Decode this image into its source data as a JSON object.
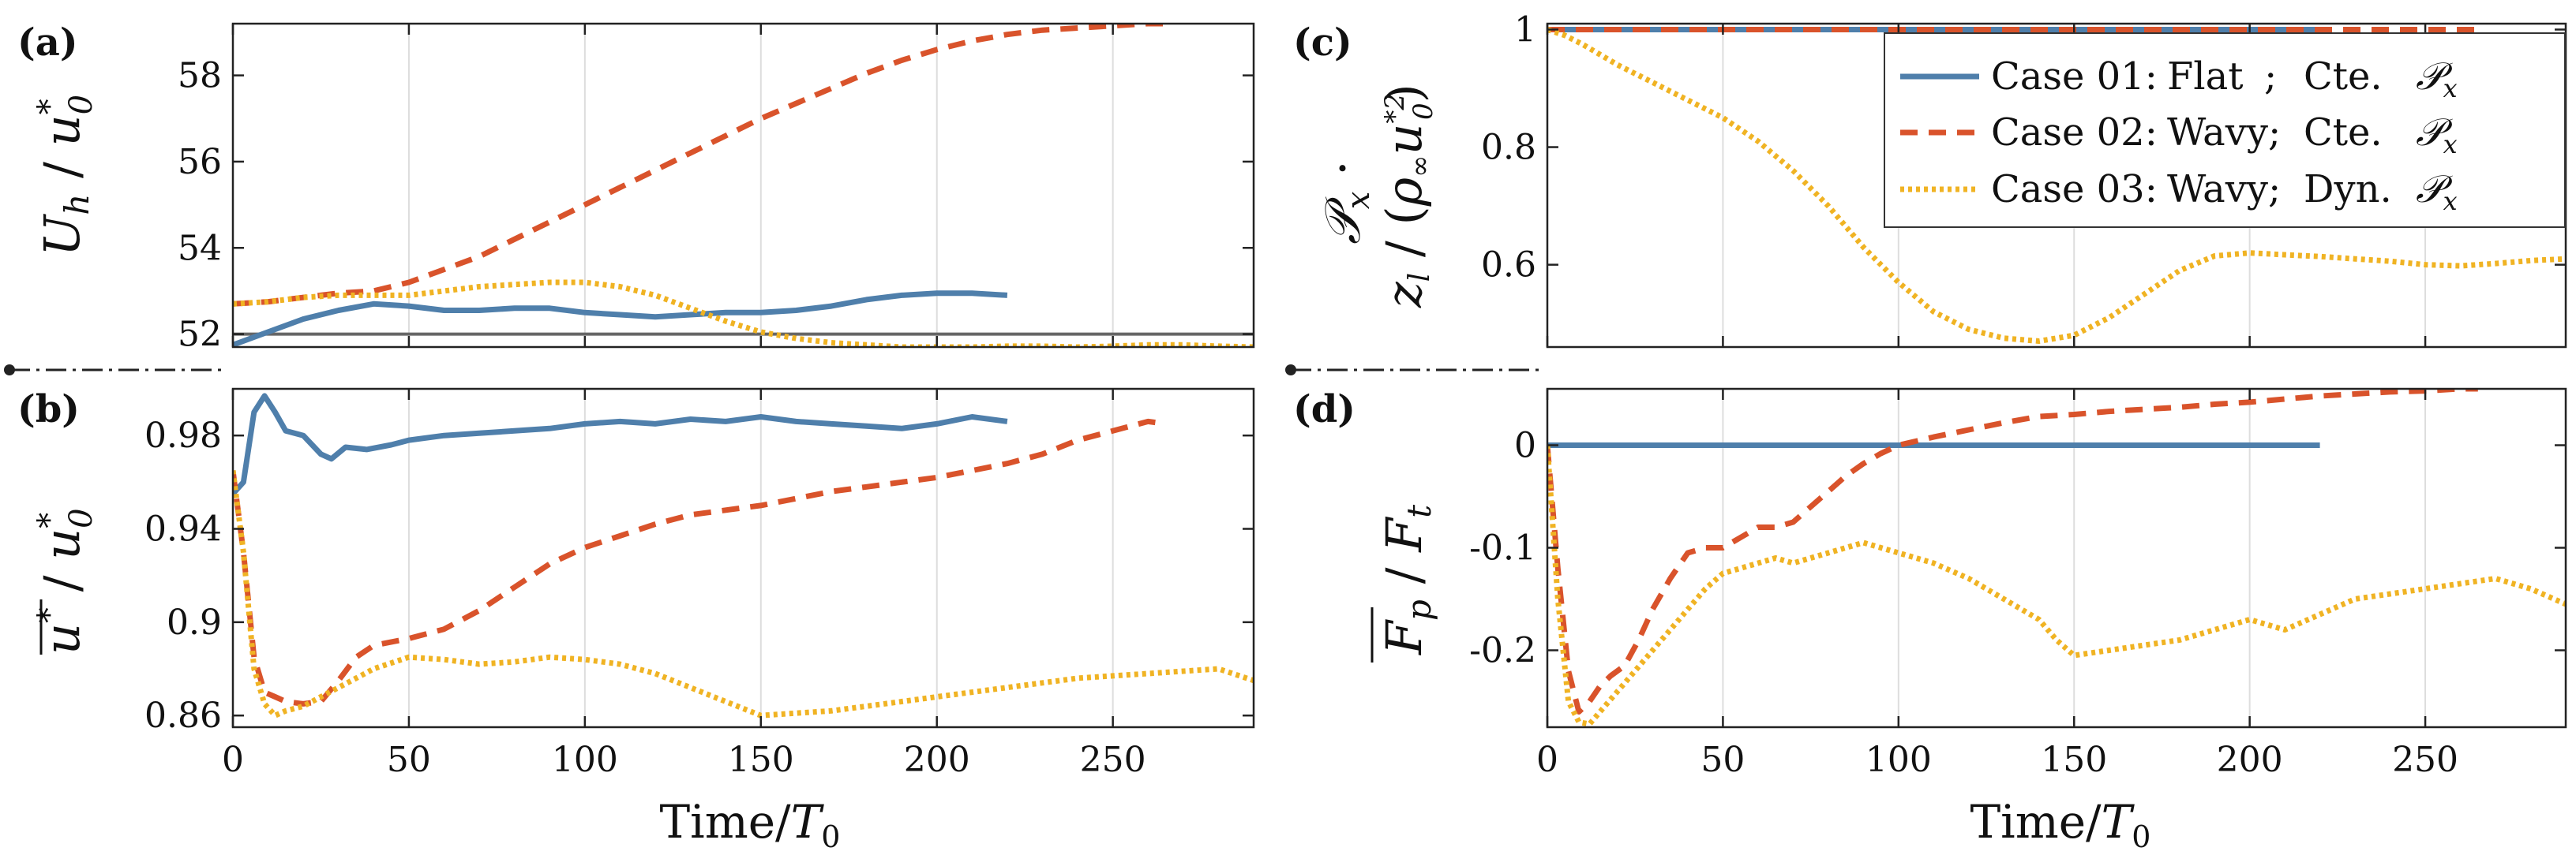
{
  "figure": {
    "series_style": [
      {
        "name": "Case 01: Flat ; Cte. P_x",
        "color": "#4f7fab",
        "dash": "none"
      },
      {
        "name": "Case 02: Wavy; Cte. P_x",
        "color": "#d9532b",
        "dash": "22,14"
      },
      {
        "name": "Case 03: Wavy; Dyn. P_x",
        "color": "#f0b323",
        "dash": "5,5"
      }
    ],
    "separator_color": "#222222"
  },
  "chart_data": [
    {
      "panel": "(a)",
      "type": "line",
      "ylabel": "U_h / u*_0",
      "xlabel": "",
      "xlim": [
        0,
        290
      ],
      "ylim": [
        51.7,
        59.2
      ],
      "xticks": [
        0,
        50,
        100,
        150,
        200,
        250
      ],
      "xtick_labels": [
        "",
        "",
        "",
        "",
        "",
        ""
      ],
      "yticks": [
        52,
        54,
        56,
        58
      ],
      "ytick_labels": [
        "52",
        "54",
        "56",
        "58"
      ],
      "ref_line": 52.0,
      "series": [
        {
          "name": "Case 01: Flat ; Cte. P_x",
          "x": [
            0,
            10,
            20,
            30,
            40,
            50,
            60,
            70,
            80,
            90,
            100,
            110,
            120,
            130,
            140,
            150,
            160,
            170,
            180,
            190,
            200,
            210,
            220
          ],
          "y": [
            51.75,
            52.05,
            52.35,
            52.55,
            52.7,
            52.65,
            52.55,
            52.55,
            52.6,
            52.6,
            52.5,
            52.45,
            52.4,
            52.45,
            52.5,
            52.5,
            52.55,
            52.65,
            52.8,
            52.9,
            52.95,
            52.95,
            52.9
          ]
        },
        {
          "name": "Case 02: Wavy; Cte. P_x",
          "x": [
            0,
            10,
            20,
            30,
            40,
            50,
            60,
            70,
            80,
            90,
            100,
            110,
            120,
            130,
            140,
            150,
            160,
            170,
            180,
            190,
            200,
            210,
            220,
            230,
            240,
            250,
            260,
            265
          ],
          "y": [
            52.7,
            52.75,
            52.85,
            52.95,
            53.0,
            53.2,
            53.5,
            53.8,
            54.2,
            54.6,
            55.0,
            55.4,
            55.8,
            56.2,
            56.6,
            57.0,
            57.35,
            57.7,
            58.05,
            58.35,
            58.6,
            58.8,
            58.95,
            59.05,
            59.1,
            59.15,
            59.2,
            59.2
          ]
        },
        {
          "name": "Case 03: Wavy; Dyn. P_x",
          "x": [
            0,
            10,
            20,
            30,
            40,
            50,
            60,
            70,
            80,
            90,
            100,
            110,
            120,
            130,
            140,
            150,
            160,
            170,
            180,
            190,
            200,
            210,
            220,
            230,
            240,
            250,
            260,
            270,
            280,
            290
          ],
          "y": [
            52.7,
            52.75,
            52.85,
            52.9,
            52.9,
            52.9,
            53.0,
            53.1,
            53.15,
            53.2,
            53.2,
            53.1,
            52.9,
            52.6,
            52.3,
            52.05,
            51.9,
            51.8,
            51.75,
            51.7,
            51.7,
            51.7,
            51.72,
            51.72,
            51.7,
            51.72,
            51.75,
            51.75,
            51.72,
            51.7
          ]
        }
      ]
    },
    {
      "panel": "(b)",
      "type": "line",
      "ylabel": "u* / u*_0",
      "xlabel": "Time/T_0",
      "xlim": [
        0,
        290
      ],
      "ylim": [
        0.855,
        1.0
      ],
      "xticks": [
        0,
        50,
        100,
        150,
        200,
        250
      ],
      "xtick_labels": [
        "0",
        "50",
        "100",
        "150",
        "200",
        "250"
      ],
      "yticks": [
        0.86,
        0.9,
        0.94,
        0.98
      ],
      "ytick_labels": [
        "0.86",
        "0.9",
        "0.94",
        "0.98"
      ],
      "series": [
        {
          "name": "Case 01: Flat ; Cte. P_x",
          "x": [
            0,
            3,
            6,
            9,
            12,
            15,
            20,
            25,
            28,
            32,
            38,
            45,
            50,
            60,
            70,
            80,
            90,
            100,
            110,
            120,
            130,
            140,
            150,
            160,
            170,
            180,
            190,
            200,
            210,
            220
          ],
          "y": [
            0.955,
            0.96,
            0.99,
            0.997,
            0.99,
            0.982,
            0.98,
            0.972,
            0.97,
            0.975,
            0.974,
            0.976,
            0.978,
            0.98,
            0.981,
            0.982,
            0.983,
            0.985,
            0.986,
            0.985,
            0.987,
            0.986,
            0.988,
            0.986,
            0.985,
            0.984,
            0.983,
            0.985,
            0.988,
            0.986
          ]
        },
        {
          "name": "Case 02: Wavy; Cte. P_x",
          "x": [
            0,
            3,
            6,
            9,
            12,
            15,
            20,
            25,
            30,
            35,
            40,
            50,
            60,
            70,
            80,
            90,
            100,
            110,
            120,
            130,
            140,
            150,
            160,
            170,
            180,
            190,
            200,
            210,
            220,
            230,
            240,
            250,
            260,
            265
          ],
          "y": [
            0.965,
            0.93,
            0.885,
            0.87,
            0.868,
            0.866,
            0.865,
            0.866,
            0.875,
            0.885,
            0.89,
            0.893,
            0.897,
            0.905,
            0.915,
            0.925,
            0.932,
            0.937,
            0.942,
            0.946,
            0.948,
            0.95,
            0.953,
            0.956,
            0.958,
            0.96,
            0.962,
            0.965,
            0.968,
            0.972,
            0.978,
            0.982,
            0.986,
            0.985
          ]
        },
        {
          "name": "Case 03: Wavy; Dyn. P_x",
          "x": [
            0,
            3,
            6,
            9,
            12,
            15,
            20,
            25,
            30,
            35,
            40,
            50,
            60,
            70,
            80,
            90,
            100,
            110,
            120,
            130,
            140,
            150,
            160,
            170,
            180,
            190,
            200,
            210,
            220,
            230,
            240,
            250,
            260,
            270,
            280,
            290
          ],
          "y": [
            0.965,
            0.93,
            0.88,
            0.865,
            0.86,
            0.862,
            0.864,
            0.868,
            0.872,
            0.876,
            0.88,
            0.885,
            0.884,
            0.882,
            0.883,
            0.885,
            0.884,
            0.882,
            0.878,
            0.872,
            0.866,
            0.86,
            0.861,
            0.862,
            0.864,
            0.866,
            0.868,
            0.87,
            0.872,
            0.874,
            0.876,
            0.877,
            0.878,
            0.879,
            0.88,
            0.875
          ]
        }
      ]
    },
    {
      "panel": "(c)",
      "type": "line",
      "ylabel_line1": "P_x ·",
      "ylabel_line2": "z_l / (ρ∞ u*_0²)",
      "xlabel": "",
      "xlim": [
        0,
        290
      ],
      "ylim": [
        0.46,
        1.01
      ],
      "xticks": [
        0,
        50,
        100,
        150,
        200,
        250
      ],
      "xtick_labels": [
        "",
        "",
        "",
        "",
        "",
        ""
      ],
      "yticks": [
        0.6,
        0.8,
        1.0
      ],
      "ytick_labels": [
        "0.6",
        "0.8",
        "1"
      ],
      "series": [
        {
          "name": "Case 01: Flat ; Cte. P_x",
          "x": [
            0,
            220
          ],
          "y": [
            1.0,
            1.0
          ]
        },
        {
          "name": "Case 02: Wavy; Cte. P_x",
          "x": [
            0,
            265
          ],
          "y": [
            1.0,
            1.0
          ]
        },
        {
          "name": "Case 03: Wavy; Dyn. P_x",
          "x": [
            0,
            5,
            10,
            20,
            30,
            40,
            50,
            60,
            70,
            80,
            90,
            100,
            110,
            120,
            130,
            140,
            150,
            160,
            170,
            180,
            190,
            200,
            210,
            220,
            230,
            240,
            250,
            260,
            270,
            280,
            290
          ],
          "y": [
            1.0,
            0.99,
            0.975,
            0.94,
            0.91,
            0.88,
            0.85,
            0.81,
            0.76,
            0.7,
            0.63,
            0.57,
            0.52,
            0.49,
            0.475,
            0.47,
            0.48,
            0.51,
            0.55,
            0.59,
            0.615,
            0.62,
            0.617,
            0.614,
            0.61,
            0.606,
            0.6,
            0.598,
            0.602,
            0.607,
            0.61
          ]
        }
      ]
    },
    {
      "panel": "(d)",
      "type": "line",
      "ylabel": "F_p / F_t",
      "xlabel": "Time/T_0",
      "xlim": [
        0,
        290
      ],
      "ylim": [
        -0.275,
        0.055
      ],
      "xticks": [
        0,
        50,
        100,
        150,
        200,
        250
      ],
      "xtick_labels": [
        "0",
        "50",
        "100",
        "150",
        "200",
        "250"
      ],
      "yticks": [
        -0.2,
        -0.1,
        0.0
      ],
      "ytick_labels": [
        "-0.2",
        "-0.1",
        "0"
      ],
      "series": [
        {
          "name": "Case 01: Flat ; Cte. P_x",
          "x": [
            0,
            220
          ],
          "y": [
            0.0,
            0.0
          ]
        },
        {
          "name": "Case 02: Wavy; Cte. P_x",
          "x": [
            0,
            3,
            6,
            9,
            12,
            15,
            18,
            22,
            26,
            30,
            35,
            40,
            45,
            50,
            55,
            60,
            65,
            70,
            75,
            80,
            85,
            90,
            95,
            100,
            110,
            120,
            130,
            140,
            150,
            160,
            170,
            180,
            190,
            200,
            210,
            220,
            230,
            240,
            250,
            260,
            265
          ],
          "y": [
            0.0,
            -0.12,
            -0.22,
            -0.26,
            -0.25,
            -0.235,
            -0.225,
            -0.215,
            -0.19,
            -0.16,
            -0.13,
            -0.105,
            -0.1,
            -0.1,
            -0.09,
            -0.08,
            -0.08,
            -0.075,
            -0.06,
            -0.045,
            -0.03,
            -0.018,
            -0.008,
            0.0,
            0.008,
            0.015,
            0.022,
            0.028,
            0.03,
            0.033,
            0.035,
            0.037,
            0.04,
            0.042,
            0.045,
            0.048,
            0.05,
            0.052,
            0.053,
            0.055,
            0.055
          ]
        },
        {
          "name": "Case 03: Wavy; Dyn. P_x",
          "x": [
            0,
            3,
            6,
            9,
            12,
            15,
            20,
            25,
            30,
            35,
            40,
            45,
            50,
            55,
            60,
            65,
            70,
            75,
            80,
            85,
            90,
            95,
            100,
            105,
            110,
            120,
            130,
            140,
            145,
            150,
            160,
            170,
            180,
            190,
            200,
            210,
            220,
            230,
            240,
            250,
            260,
            270,
            280,
            290
          ],
          "y": [
            0.0,
            -0.15,
            -0.25,
            -0.27,
            -0.272,
            -0.26,
            -0.24,
            -0.22,
            -0.2,
            -0.18,
            -0.16,
            -0.14,
            -0.125,
            -0.12,
            -0.115,
            -0.11,
            -0.115,
            -0.11,
            -0.105,
            -0.1,
            -0.095,
            -0.1,
            -0.105,
            -0.11,
            -0.115,
            -0.13,
            -0.15,
            -0.17,
            -0.19,
            -0.205,
            -0.2,
            -0.195,
            -0.19,
            -0.18,
            -0.17,
            -0.18,
            -0.165,
            -0.15,
            -0.145,
            -0.14,
            -0.135,
            -0.13,
            -0.14,
            -0.155
          ]
        }
      ]
    }
  ],
  "legend": {
    "placement": "top-right of panel (c)",
    "entries": [
      {
        "case": "Case 01:",
        "surface": "Flat",
        "sep": ";",
        "gradient": "Cte.",
        "sym": "P_x"
      },
      {
        "case": "Case 02:",
        "surface": "Wavy;",
        "sep": "",
        "gradient": "Cte.",
        "sym": "P_x"
      },
      {
        "case": "Case 03:",
        "surface": "Wavy;",
        "sep": "",
        "gradient": "Dyn.",
        "sym": "P_x"
      }
    ]
  },
  "labels": {
    "a": "(a)",
    "b": "(b)",
    "c": "(c)",
    "d": "(d)",
    "xlabel_time": "Time/",
    "xlabel_T": "T",
    "xlabel_sub": "0"
  }
}
